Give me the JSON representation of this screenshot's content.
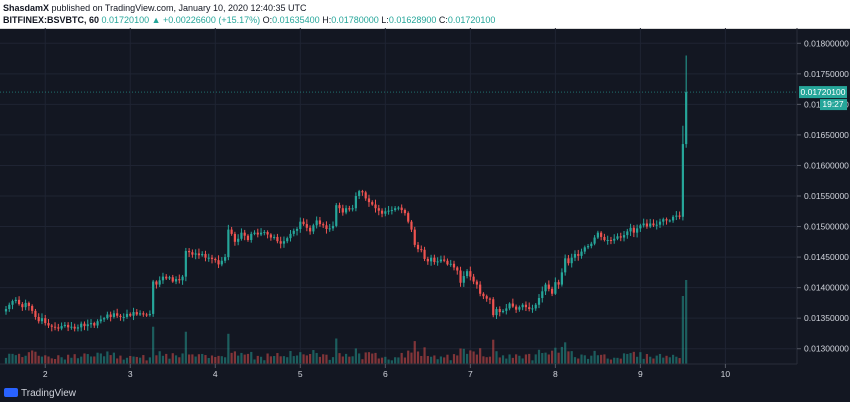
{
  "header": {
    "publisher": "ShasdamX",
    "published_text": "published on TradingView.com, January 10, 2020 12:40:35 UTC",
    "symbol": "BITFINEX:BSVBTC, 60",
    "last": "0.01720100",
    "change": "▲ +0.00226600 (+15.17%)",
    "o_label": "O:",
    "o_value": "0.01635400",
    "h_label": "H:",
    "h_value": "0.01780000",
    "l_label": "L:",
    "l_value": "0.01628900",
    "c_label": "C:",
    "c_value": "0.01720100"
  },
  "footer": {
    "brand": "TradingView"
  },
  "colors": {
    "background": "#131722",
    "up": "#26a69a",
    "down": "#ef5350",
    "grid": "#1f2433",
    "text": "#d1d4dc"
  },
  "price_label": {
    "value": "0.01720100",
    "countdown": "19:27"
  },
  "chart_data": {
    "type": "candlestick",
    "symbol": "BITFINEX:BSVBTC",
    "interval": "60",
    "ylim": [
      0.01275,
      0.01825
    ],
    "y_ticks": [
      "0.01300000",
      "0.01350000",
      "0.01400000",
      "0.01450000",
      "0.01500000",
      "0.01550000",
      "0.01600000",
      "0.01650000",
      "0.01700000",
      "0.01750000",
      "0.01800000"
    ],
    "x_ticks": [
      "2",
      "3",
      "4",
      "5",
      "6",
      "7",
      "8",
      "9",
      "10"
    ],
    "x_tick_index": [
      12,
      38,
      64,
      90,
      116,
      142,
      168,
      194,
      220
    ],
    "close": [
      0.01365,
      0.01372,
      0.01378,
      0.0138,
      0.01373,
      0.01368,
      0.01375,
      0.0137,
      0.01362,
      0.01352,
      0.01345,
      0.0135,
      0.01342,
      0.01338,
      0.01336,
      0.01335,
      0.01333,
      0.01337,
      0.01339,
      0.01335,
      0.01336,
      0.01333,
      0.01335,
      0.01341,
      0.01337,
      0.0134,
      0.01342,
      0.01338,
      0.01345,
      0.01348,
      0.0135,
      0.01356,
      0.01352,
      0.01358,
      0.01354,
      0.01352,
      0.01352,
      0.01357,
      0.01354,
      0.0136,
      0.01356,
      0.01358,
      0.01356,
      0.01355,
      0.01357,
      0.0141,
      0.01405,
      0.01412,
      0.01418,
      0.01415,
      0.01417,
      0.0141,
      0.01414,
      0.01412,
      0.01418,
      0.0146,
      0.01458,
      0.01454,
      0.01456,
      0.01453,
      0.01455,
      0.01449,
      0.01449,
      0.01447,
      0.01445,
      0.01438,
      0.01444,
      0.0145,
      0.01495,
      0.01488,
      0.01475,
      0.0148,
      0.0149,
      0.01485,
      0.01478,
      0.01488,
      0.0149,
      0.01487,
      0.0149,
      0.01491,
      0.01487,
      0.01482,
      0.01483,
      0.01476,
      0.01472,
      0.01476,
      0.01481,
      0.01488,
      0.01493,
      0.01496,
      0.01508,
      0.01504,
      0.01498,
      0.01492,
      0.01502,
      0.0151,
      0.01504,
      0.01502,
      0.01496,
      0.01497,
      0.01501,
      0.01535,
      0.0153,
      0.01523,
      0.0153,
      0.01528,
      0.0153,
      0.0155,
      0.01558,
      0.01556,
      0.01546,
      0.0154,
      0.01536,
      0.0153,
      0.01526,
      0.01521,
      0.01525,
      0.01526,
      0.01527,
      0.0153,
      0.01531,
      0.01527,
      0.01522,
      0.01508,
      0.01495,
      0.0147,
      0.01463,
      0.01462,
      0.01447,
      0.01443,
      0.01449,
      0.01442,
      0.01443,
      0.01446,
      0.01444,
      0.01438,
      0.01439,
      0.01433,
      0.01428,
      0.01408,
      0.01419,
      0.01427,
      0.01418,
      0.0141,
      0.01405,
      0.0139,
      0.01386,
      0.01382,
      0.01381,
      0.01355,
      0.01365,
      0.0136,
      0.01362,
      0.01366,
      0.01374,
      0.01369,
      0.01364,
      0.01368,
      0.01372,
      0.01368,
      0.01365,
      0.01366,
      0.01372,
      0.01383,
      0.01394,
      0.01405,
      0.01398,
      0.0139,
      0.01409,
      0.01405,
      0.01425,
      0.01448,
      0.0144,
      0.01449,
      0.01455,
      0.01452,
      0.01459,
      0.01466,
      0.01468,
      0.01472,
      0.01482,
      0.0149,
      0.01483,
      0.01478,
      0.01478,
      0.01477,
      0.0148,
      0.01484,
      0.01482,
      0.01486,
      0.01492,
      0.01498,
      0.0149,
      0.01497,
      0.01502,
      0.01505,
      0.015,
      0.01505,
      0.01502,
      0.01503,
      0.01508,
      0.01512,
      0.0151,
      0.0151,
      0.01516,
      0.01518,
      0.01516,
      0.01635,
      0.0172
    ],
    "volume_scale": "relative",
    "last_price": "0.01720100"
  }
}
